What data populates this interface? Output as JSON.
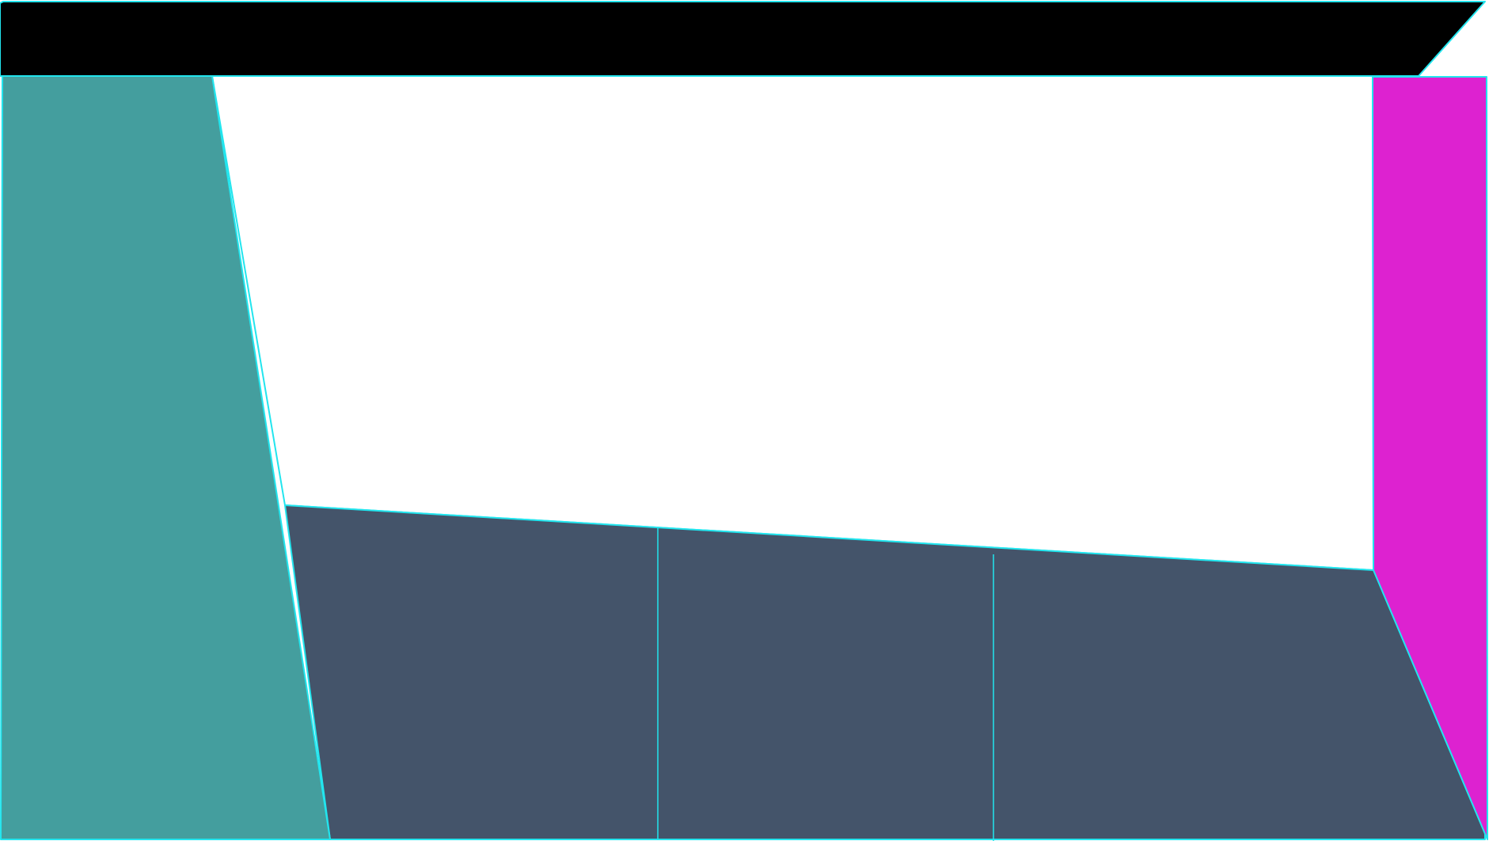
{
  "regions": {
    "top_bar": {
      "fill": "#000000"
    },
    "left_panel": {
      "fill": "#449e9e"
    },
    "center_area": {
      "fill": "#ffffff"
    },
    "right_panel": {
      "fill": "#dd22d0"
    },
    "bottom_panel": {
      "fill": "#44546a"
    }
  },
  "outline_color": "#22e5ee"
}
